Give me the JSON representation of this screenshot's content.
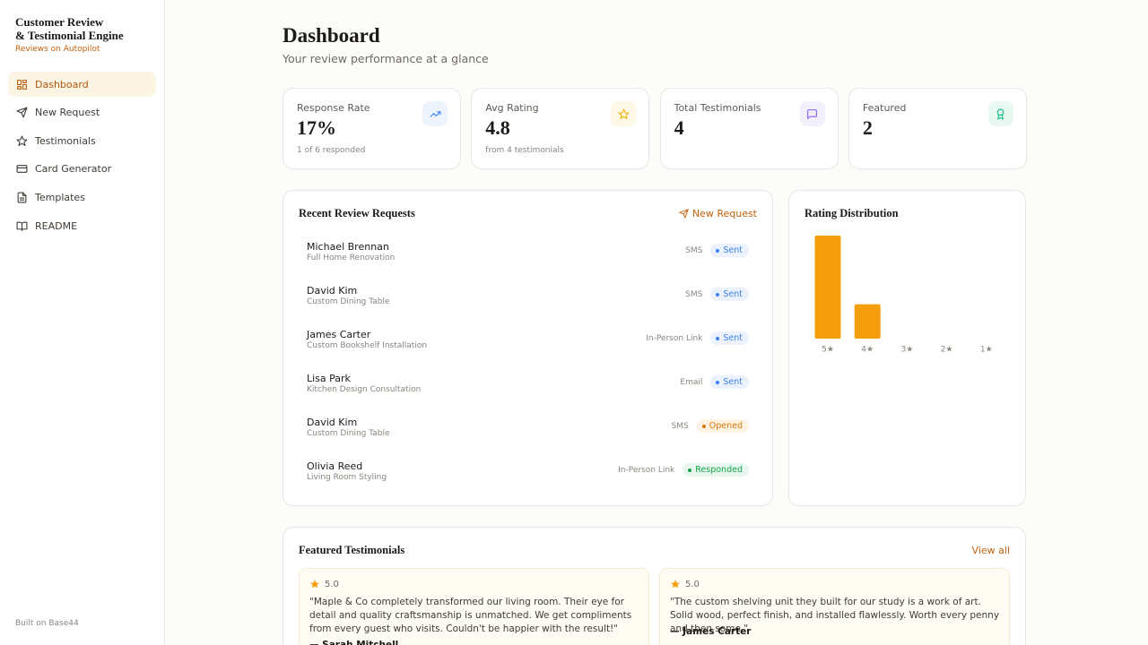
{
  "sidebar": {
    "title": "Customer Review\n& Testimonial Engine",
    "tagline": "Reviews on Autopilot",
    "nav": [
      "Dashboard",
      "New Request",
      "Testimonials",
      "Card Generator",
      "Templates",
      "README"
    ],
    "footer": "Built on Base44"
  },
  "header": {
    "title": "Dashboard",
    "subtitle": "Your review performance at a glance"
  },
  "stats": [
    {
      "label": "Response Rate",
      "value": "17%",
      "note": "1 of 6 responded"
    },
    {
      "label": "Avg Rating",
      "value": "4.8",
      "note": "from 4 testimonials"
    },
    {
      "label": "Total Testimonials",
      "value": "4"
    },
    {
      "label": "Featured",
      "value": "2"
    }
  ],
  "requests": {
    "title": "Recent Review Requests",
    "action": "New Request",
    "rows": [
      {
        "name": "Michael Brennan",
        "project": "Full Home Renovation",
        "channel": "SMS",
        "status": "Sent"
      },
      {
        "name": "David Kim",
        "project": "Custom Dining Table",
        "channel": "SMS",
        "status": "Sent"
      },
      {
        "name": "James Carter",
        "project": "Custom Bookshelf Installation",
        "channel": "In-Person Link",
        "status": "Sent"
      },
      {
        "name": "Lisa Park",
        "project": "Kitchen Design Consultation",
        "channel": "Email",
        "status": "Sent"
      },
      {
        "name": "David Kim",
        "project": "Custom Dining Table",
        "channel": "SMS",
        "status": "Opened"
      },
      {
        "name": "Olivia Reed",
        "project": "Living Room Styling",
        "channel": "In-Person Link",
        "status": "Responded"
      }
    ]
  },
  "chart_data": {
    "type": "bar",
    "title": "Rating Distribution",
    "categories": [
      "5★",
      "4★",
      "3★",
      "2★",
      "1★"
    ],
    "values": [
      3,
      1,
      0,
      0,
      0
    ],
    "color": "#f59e0b",
    "ylim": [
      0,
      3
    ]
  },
  "featured": {
    "title": "Featured Testimonials",
    "action": "View all",
    "items": [
      {
        "rating": "5.0",
        "quote": "\"Maple & Co completely transformed our living room. Their eye for detail and quality craftsmanship is unmatched. We get compliments from every guest who visits. Couldn't be happier with the result!\"",
        "author": "— Sarah Mitchell"
      },
      {
        "rating": "5.0",
        "quote": "\"The custom shelving unit they built for our study is a work of art. Solid wood, perfect finish, and installed flawlessly. Worth every penny and then some.\"",
        "author": "— James Carter"
      }
    ]
  }
}
